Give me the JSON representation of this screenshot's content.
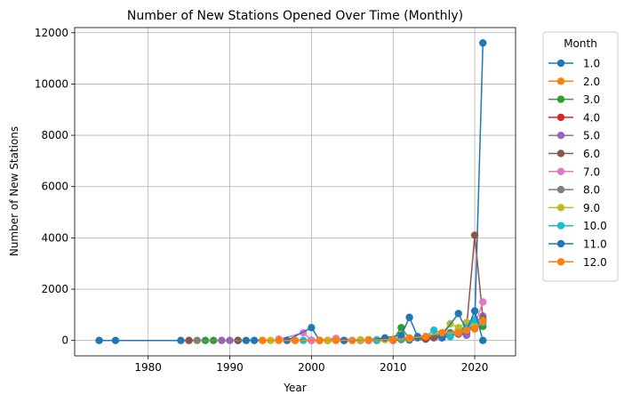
{
  "chart_data": {
    "type": "line",
    "title": "Number of New Stations Opened Over Time (Monthly)",
    "xlabel": "Year",
    "ylabel": "Number of New Stations",
    "xlim": [
      1971,
      2025
    ],
    "ylim": [
      -600,
      12200
    ],
    "xticks": [
      1980,
      1990,
      2000,
      2010,
      2020
    ],
    "yticks": [
      0,
      2000,
      4000,
      6000,
      8000,
      10000,
      12000
    ],
    "grid": true,
    "legend": {
      "title": "Month",
      "placement": "outside-right"
    },
    "series": [
      {
        "name": "1.0",
        "color": "#1f77b4",
        "points": [
          [
            1974,
            0
          ],
          [
            1976,
            0
          ],
          [
            1984,
            0
          ],
          [
            2000,
            10
          ],
          [
            2010,
            10
          ],
          [
            2012,
            20
          ],
          [
            2014,
            50
          ],
          [
            2016,
            100
          ],
          [
            2018,
            250
          ],
          [
            2019,
            300
          ],
          [
            2020,
            700
          ],
          [
            2021,
            11600
          ]
        ]
      },
      {
        "name": "2.0",
        "color": "#ff7f0e",
        "points": [
          [
            1985,
            0
          ],
          [
            1994,
            0
          ],
          [
            2001,
            0
          ],
          [
            2005,
            0
          ],
          [
            2010,
            20
          ],
          [
            2014,
            80
          ],
          [
            2018,
            300
          ],
          [
            2019,
            400
          ],
          [
            2020,
            600
          ],
          [
            2021,
            800
          ]
        ]
      },
      {
        "name": "3.0",
        "color": "#2ca02c",
        "points": [
          [
            1987,
            0
          ],
          [
            1988,
            0
          ],
          [
            2004,
            0
          ],
          [
            2008,
            0
          ],
          [
            2010,
            30
          ],
          [
            2011,
            500
          ],
          [
            2012,
            80
          ],
          [
            2016,
            200
          ],
          [
            2017,
            300
          ],
          [
            2018,
            400
          ],
          [
            2020,
            700
          ],
          [
            2021,
            550
          ]
        ]
      },
      {
        "name": "4.0",
        "color": "#d62728",
        "points": [
          [
            1991,
            0
          ],
          [
            2000,
            0
          ],
          [
            2006,
            0
          ],
          [
            2010,
            10
          ],
          [
            2014,
            80
          ],
          [
            2018,
            250
          ],
          [
            2019,
            450
          ],
          [
            2020,
            650
          ],
          [
            2021,
            700
          ]
        ]
      },
      {
        "name": "5.0",
        "color": "#9467bd",
        "points": [
          [
            1989,
            0
          ],
          [
            1990,
            0
          ],
          [
            2002,
            0
          ],
          [
            2007,
            0
          ],
          [
            2011,
            30
          ],
          [
            2015,
            100
          ],
          [
            2018,
            250
          ],
          [
            2019,
            200
          ],
          [
            2020,
            700
          ],
          [
            2021,
            950
          ]
        ]
      },
      {
        "name": "6.0",
        "color": "#8c564b",
        "points": [
          [
            1985,
            0
          ],
          [
            1991,
            0
          ],
          [
            2002,
            0
          ],
          [
            2008,
            20
          ],
          [
            2011,
            50
          ],
          [
            2015,
            120
          ],
          [
            2017,
            200
          ],
          [
            2018,
            350
          ],
          [
            2019,
            500
          ],
          [
            2020,
            4100
          ],
          [
            2021,
            850
          ]
        ]
      },
      {
        "name": "7.0",
        "color": "#e377c2",
        "points": [
          [
            1996,
            50
          ],
          [
            1999,
            300
          ],
          [
            2000,
            0
          ],
          [
            2003,
            80
          ],
          [
            2006,
            20
          ],
          [
            2010,
            30
          ],
          [
            2013,
            100
          ],
          [
            2016,
            300
          ],
          [
            2018,
            350
          ],
          [
            2020,
            600
          ],
          [
            2021,
            1500
          ]
        ]
      },
      {
        "name": "8.0",
        "color": "#7f7f7f",
        "points": [
          [
            1986,
            0
          ],
          [
            1998,
            0
          ],
          [
            2002,
            0
          ],
          [
            2007,
            20
          ],
          [
            2009,
            50
          ],
          [
            2011,
            50
          ],
          [
            2013,
            100
          ],
          [
            2016,
            200
          ],
          [
            2018,
            300
          ],
          [
            2019,
            400
          ],
          [
            2020,
            550
          ],
          [
            2021,
            800
          ]
        ]
      },
      {
        "name": "9.0",
        "color": "#bcbd22",
        "points": [
          [
            1995,
            0
          ],
          [
            2002,
            0
          ],
          [
            2006,
            20
          ],
          [
            2009,
            30
          ],
          [
            2012,
            80
          ],
          [
            2016,
            300
          ],
          [
            2017,
            650
          ],
          [
            2018,
            500
          ],
          [
            2019,
            700
          ],
          [
            2020,
            600
          ],
          [
            2021,
            750
          ]
        ]
      },
      {
        "name": "10.0",
        "color": "#17becf",
        "points": [
          [
            1999,
            0
          ],
          [
            2001,
            0
          ],
          [
            2004,
            0
          ],
          [
            2008,
            20
          ],
          [
            2011,
            100
          ],
          [
            2014,
            150
          ],
          [
            2015,
            400
          ],
          [
            2017,
            150
          ],
          [
            2019,
            500
          ],
          [
            2020,
            800
          ],
          [
            2021,
            700
          ]
        ]
      },
      {
        "name": "11.0",
        "color": "#1f77b4",
        "points": [
          [
            1992,
            0
          ],
          [
            1993,
            0
          ],
          [
            1997,
            0
          ],
          [
            2000,
            500
          ],
          [
            2001,
            0
          ],
          [
            2004,
            0
          ],
          [
            2007,
            20
          ],
          [
            2009,
            100
          ],
          [
            2011,
            200
          ],
          [
            2012,
            900
          ],
          [
            2013,
            150
          ],
          [
            2016,
            200
          ],
          [
            2018,
            1050
          ],
          [
            2019,
            400
          ],
          [
            2020,
            1150
          ],
          [
            2021,
            0
          ]
        ]
      },
      {
        "name": "12.0",
        "color": "#ff7f0e",
        "points": [
          [
            1994,
            0
          ],
          [
            1996,
            0
          ],
          [
            1998,
            0
          ],
          [
            2001,
            0
          ],
          [
            2003,
            0
          ],
          [
            2007,
            20
          ],
          [
            2010,
            30
          ],
          [
            2012,
            100
          ],
          [
            2014,
            150
          ],
          [
            2016,
            300
          ],
          [
            2018,
            300
          ],
          [
            2019,
            400
          ],
          [
            2020,
            450
          ],
          [
            2021,
            750
          ]
        ]
      }
    ]
  }
}
